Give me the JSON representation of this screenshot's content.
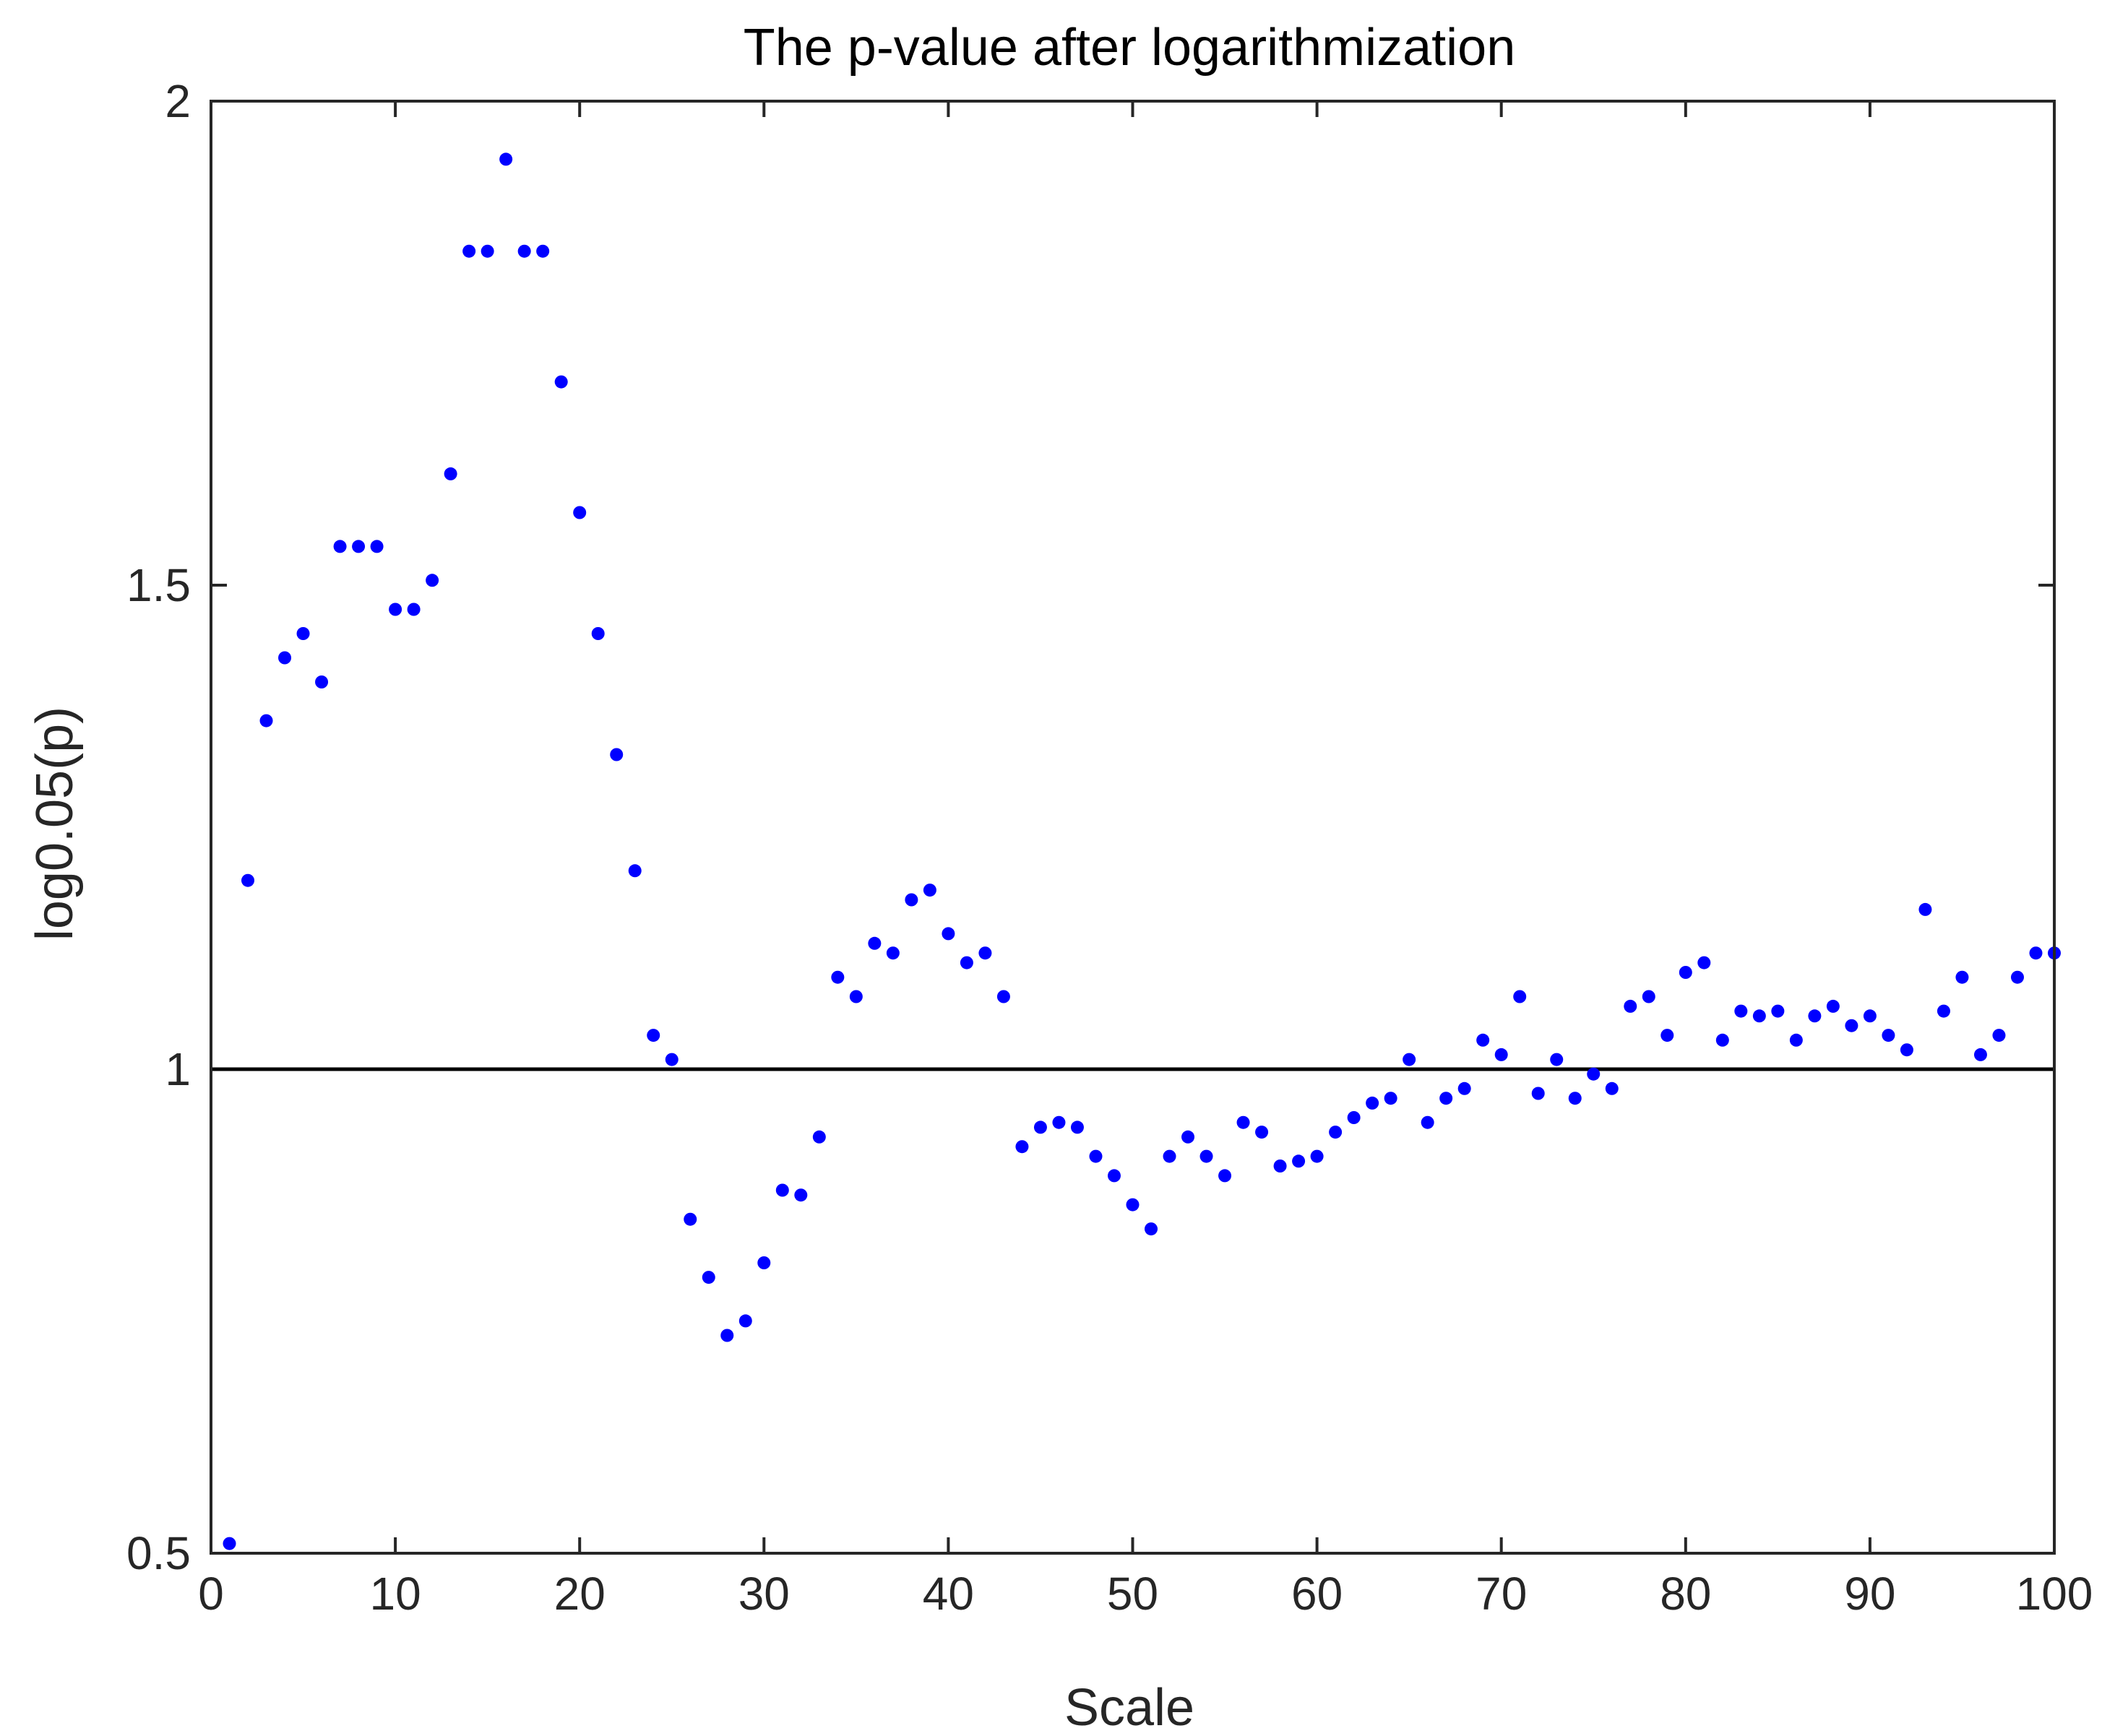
{
  "chart_data": {
    "type": "scatter",
    "title": "The p-value after logarithmization",
    "xlabel": "Scale",
    "ylabel": "log0.05(p)",
    "xlim": [
      0,
      100
    ],
    "ylim": [
      0.5,
      2
    ],
    "xticks": [
      0,
      10,
      20,
      30,
      40,
      50,
      60,
      70,
      80,
      90,
      100
    ],
    "xtick_labels": [
      "0",
      "10",
      "20",
      "30",
      "40",
      "50",
      "60",
      "70",
      "80",
      "90",
      "100"
    ],
    "yticks": [
      0.5,
      1,
      1.5,
      2
    ],
    "ytick_labels": [
      "0.5",
      "1",
      "1.5",
      "2"
    ],
    "grid": false,
    "reference_line": {
      "y": 1,
      "color": "#000000"
    },
    "colors": {
      "marker": "#0000ff",
      "axes": "#262626"
    },
    "series": [
      {
        "marker": "dot",
        "x": [
          1,
          2,
          3,
          4,
          5,
          6,
          7,
          8,
          9,
          10,
          11,
          12,
          13,
          14,
          15,
          16,
          17,
          18,
          19,
          20,
          21,
          22,
          23,
          24,
          25,
          26,
          27,
          28,
          29,
          30,
          31,
          32,
          33,
          34,
          35,
          36,
          37,
          38,
          39,
          40,
          41,
          42,
          43,
          44,
          45,
          46,
          47,
          48,
          49,
          50,
          51,
          52,
          53,
          54,
          55,
          56,
          57,
          58,
          59,
          60,
          61,
          62,
          63,
          64,
          65,
          66,
          67,
          68,
          69,
          70,
          71,
          72,
          73,
          74,
          75,
          76,
          77,
          78,
          79,
          80,
          81,
          82,
          83,
          84,
          85,
          86,
          87,
          88,
          89,
          90,
          91,
          92,
          93,
          94,
          95,
          96,
          97,
          98,
          99,
          100
        ],
        "y": [
          0.51,
          1.195,
          1.36,
          1.425,
          1.45,
          1.4,
          1.54,
          1.54,
          1.54,
          1.475,
          1.475,
          1.505,
          1.615,
          1.845,
          1.845,
          1.94,
          1.845,
          1.845,
          1.71,
          1.575,
          1.45,
          1.325,
          1.205,
          1.035,
          1.01,
          0.845,
          0.785,
          0.725,
          0.74,
          0.8,
          0.875,
          0.87,
          0.93,
          1.095,
          1.075,
          1.13,
          1.12,
          1.175,
          1.185,
          1.14,
          1.11,
          1.12,
          1.075,
          0.92,
          0.94,
          0.945,
          0.94,
          0.91,
          0.89,
          0.86,
          0.835,
          0.91,
          0.93,
          0.91,
          0.89,
          0.945,
          0.935,
          0.9,
          0.905,
          0.91,
          0.935,
          0.95,
          0.965,
          0.97,
          1.01,
          0.945,
          0.97,
          0.98,
          1.03,
          1.015,
          1.075,
          0.975,
          1.01,
          0.97,
          0.995,
          0.98,
          1.065,
          1.075,
          1.035,
          1.1,
          1.11,
          1.03,
          1.06,
          1.055,
          1.06,
          1.03,
          1.055,
          1.065,
          1.045,
          1.055,
          1.035,
          1.02,
          1.165,
          1.06,
          1.095,
          1.015,
          1.035,
          1.095,
          1.12,
          1.12
        ]
      }
    ]
  }
}
